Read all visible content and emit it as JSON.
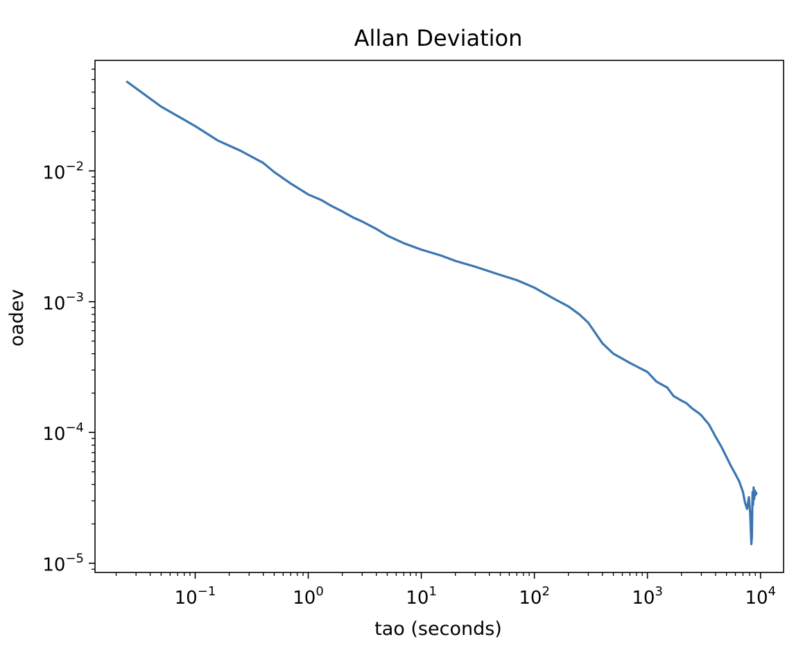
{
  "chart_data": {
    "type": "line",
    "title": "Allan Deviation",
    "xlabel": "tao (seconds)",
    "ylabel": "oadev",
    "x_scale": "log",
    "y_scale": "log",
    "xlim": [
      0.013,
      16000
    ],
    "ylim": [
      8.5e-06,
      0.07
    ],
    "grid": false,
    "legend": "none",
    "line_color": "#3a76b0",
    "x_ticks": [
      {
        "value": 0.1,
        "base": "10",
        "exp": "−1"
      },
      {
        "value": 1,
        "base": "10",
        "exp": "0"
      },
      {
        "value": 10,
        "base": "10",
        "exp": "1"
      },
      {
        "value": 100,
        "base": "10",
        "exp": "2"
      },
      {
        "value": 1000,
        "base": "10",
        "exp": "3"
      },
      {
        "value": 10000,
        "base": "10",
        "exp": "4"
      }
    ],
    "y_ticks": [
      {
        "value": 1e-05,
        "base": "10",
        "exp": "−5"
      },
      {
        "value": 0.0001,
        "base": "10",
        "exp": "−4"
      },
      {
        "value": 0.001,
        "base": "10",
        "exp": "−3"
      },
      {
        "value": 0.01,
        "base": "10",
        "exp": "−2"
      }
    ],
    "series": [
      {
        "x": [
          0.025,
          0.05,
          0.1,
          0.16,
          0.25,
          0.4,
          0.5,
          0.7,
          1,
          1.3,
          1.6,
          2,
          2.5,
          3,
          4,
          5,
          7,
          10,
          15,
          20,
          30,
          50,
          70,
          100,
          150,
          200,
          250,
          300,
          400,
          500,
          700,
          800,
          1000,
          1200,
          1500,
          1700,
          2000,
          2200,
          2500,
          2800,
          3000,
          3500,
          4000,
          4500,
          5000,
          5500,
          6000,
          6500,
          7000,
          7300,
          7600,
          7900,
          8100,
          8300,
          8400,
          8500,
          8600,
          8700,
          8800,
          8900,
          9000,
          9100,
          9200
        ],
        "y": [
          0.048,
          0.031,
          0.022,
          0.017,
          0.0143,
          0.0115,
          0.0098,
          0.008,
          0.0066,
          0.006,
          0.0054,
          0.0049,
          0.0044,
          0.0041,
          0.0036,
          0.0032,
          0.0028,
          0.0025,
          0.00225,
          0.00205,
          0.00185,
          0.0016,
          0.00146,
          0.00128,
          0.00105,
          0.00092,
          0.0008,
          0.00069,
          0.00048,
          0.0004,
          0.00034,
          0.00032,
          0.00029,
          0.000245,
          0.00022,
          0.00019,
          0.000175,
          0.000168,
          0.000152,
          0.000142,
          0.000135,
          0.000115,
          9.3e-05,
          7.8e-05,
          6.5e-05,
          5.5e-05,
          4.8e-05,
          4.2e-05,
          3.5e-05,
          2.9e-05,
          2.6e-05,
          3.2e-05,
          2.4e-05,
          1.4e-05,
          1.6e-05,
          3.5e-05,
          2.8e-05,
          3.8e-05,
          3.1e-05,
          3.6e-05,
          3.3e-05,
          3.5e-05,
          3.4e-05
        ]
      }
    ]
  }
}
